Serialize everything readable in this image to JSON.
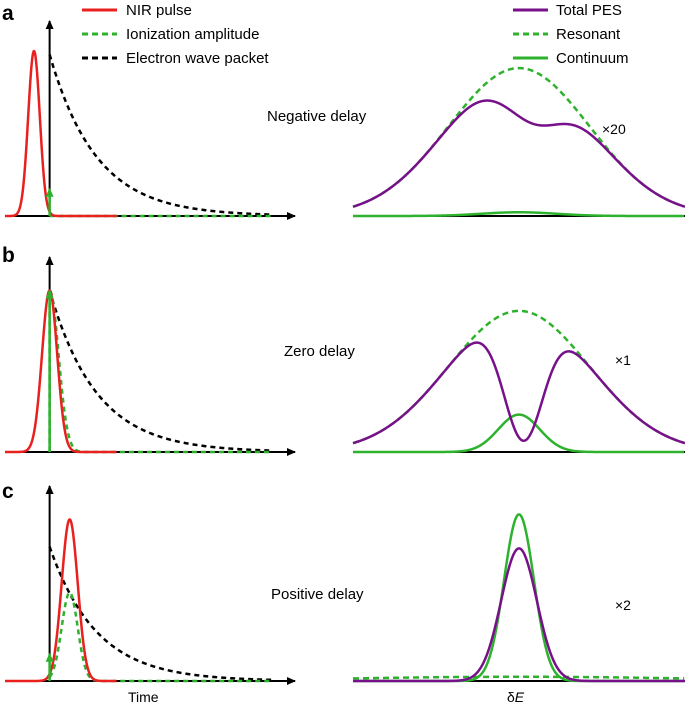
{
  "colors": {
    "nir": "#e8211f",
    "green": "#2eb22e",
    "purple": "#77118a",
    "black": "#000000"
  },
  "legend_left": [
    {
      "label": "NIR pulse",
      "style": "solid",
      "color": "#e8211f"
    },
    {
      "label": "Ionization amplitude",
      "style": "dashed",
      "color": "#2eb22e"
    },
    {
      "label": "Electron wave packet",
      "style": "dashed",
      "color": "#000000"
    }
  ],
  "legend_right": [
    {
      "label": "Total PES",
      "style": "solid",
      "color": "#77118a"
    },
    {
      "label": "Resonant",
      "style": "dashed",
      "color": "#2eb22e"
    },
    {
      "label": "Continuum",
      "style": "solid",
      "color": "#2eb22e"
    }
  ],
  "axes": {
    "time_label": "Time",
    "energy_label_prefix": "δ",
    "energy_label_var": "E"
  },
  "chart_data": [
    {
      "panel": "a",
      "type": "line",
      "delay_label": "Negative delay",
      "scale_label": "×20",
      "time_domain": {
        "x_range": [
          -1,
          5.5
        ],
        "y_range": [
          0,
          1.25
        ],
        "nir_pulse": {
          "center": -0.35,
          "width": 0.13,
          "amplitude": 0.97
        },
        "ionization_amplitude": {
          "onset": 0,
          "amplitude": 0.03
        },
        "electron_wave_packet": {
          "start": 0,
          "amplitude": 0.95,
          "decay": 1.05
        }
      },
      "spectrum": {
        "x_range": [
          -4,
          4
        ],
        "y_range": [
          0,
          1.25
        ],
        "resonant": {
          "amplitude": 0.87,
          "width": 1.7
        },
        "total": {
          "amplitude": 0.87,
          "width": 1.7,
          "dip_center": 0.25,
          "dip_depth": 0.36,
          "dip_width": 0.8,
          "dip_skew": 0.2
        },
        "continuum": {
          "amplitude": 0.022,
          "width": 0.9
        }
      }
    },
    {
      "panel": "b",
      "type": "line",
      "delay_label": "Zero delay",
      "scale_label": "×1",
      "time_domain": {
        "x_range": [
          -1,
          5.5
        ],
        "y_range": [
          0,
          1.25
        ],
        "nir_pulse": {
          "center": 0,
          "width": 0.17,
          "amplitude": 0.95
        },
        "ionization_amplitude": {
          "onset": 0,
          "amplitude": 0.95,
          "decay_width": 0.2
        },
        "electron_wave_packet": {
          "start": 0,
          "amplitude": 0.95,
          "decay": 1.05
        }
      },
      "spectrum": {
        "x_range": [
          -4,
          4
        ],
        "y_range": [
          0,
          1.25
        ],
        "resonant": {
          "amplitude": 0.83,
          "width": 1.7
        },
        "total": {
          "amplitude": 0.83,
          "width": 1.7,
          "dip_center": 0.1,
          "dip_depth": 0.92,
          "dip_width": 0.5,
          "dip_skew": 0.05
        },
        "continuum": {
          "amplitude": 0.22,
          "width": 0.5
        }
      }
    },
    {
      "panel": "c",
      "type": "line",
      "delay_label": "Positive delay",
      "scale_label": "×2",
      "time_domain": {
        "x_range": [
          -1,
          5.5
        ],
        "y_range": [
          0,
          1.25
        ],
        "nir_pulse": {
          "center": 0.45,
          "width": 0.18,
          "amplitude": 0.95
        },
        "ionization_amplitude": {
          "onset": 0,
          "amplitude": 0.52,
          "center": 0.45,
          "width": 0.18
        },
        "electron_wave_packet": {
          "start": 0,
          "amplitude": 0.79,
          "decay": 1.05
        }
      },
      "spectrum": {
        "x_range": [
          -4,
          4
        ],
        "y_range": [
          0,
          1.25
        ],
        "resonant": {
          "amplitude": 0.025,
          "width": 4.0
        },
        "total": {
          "amplitude": 0.78,
          "width": 0.43
        },
        "continuum": {
          "amplitude": 0.98,
          "width": 0.36
        }
      }
    }
  ]
}
